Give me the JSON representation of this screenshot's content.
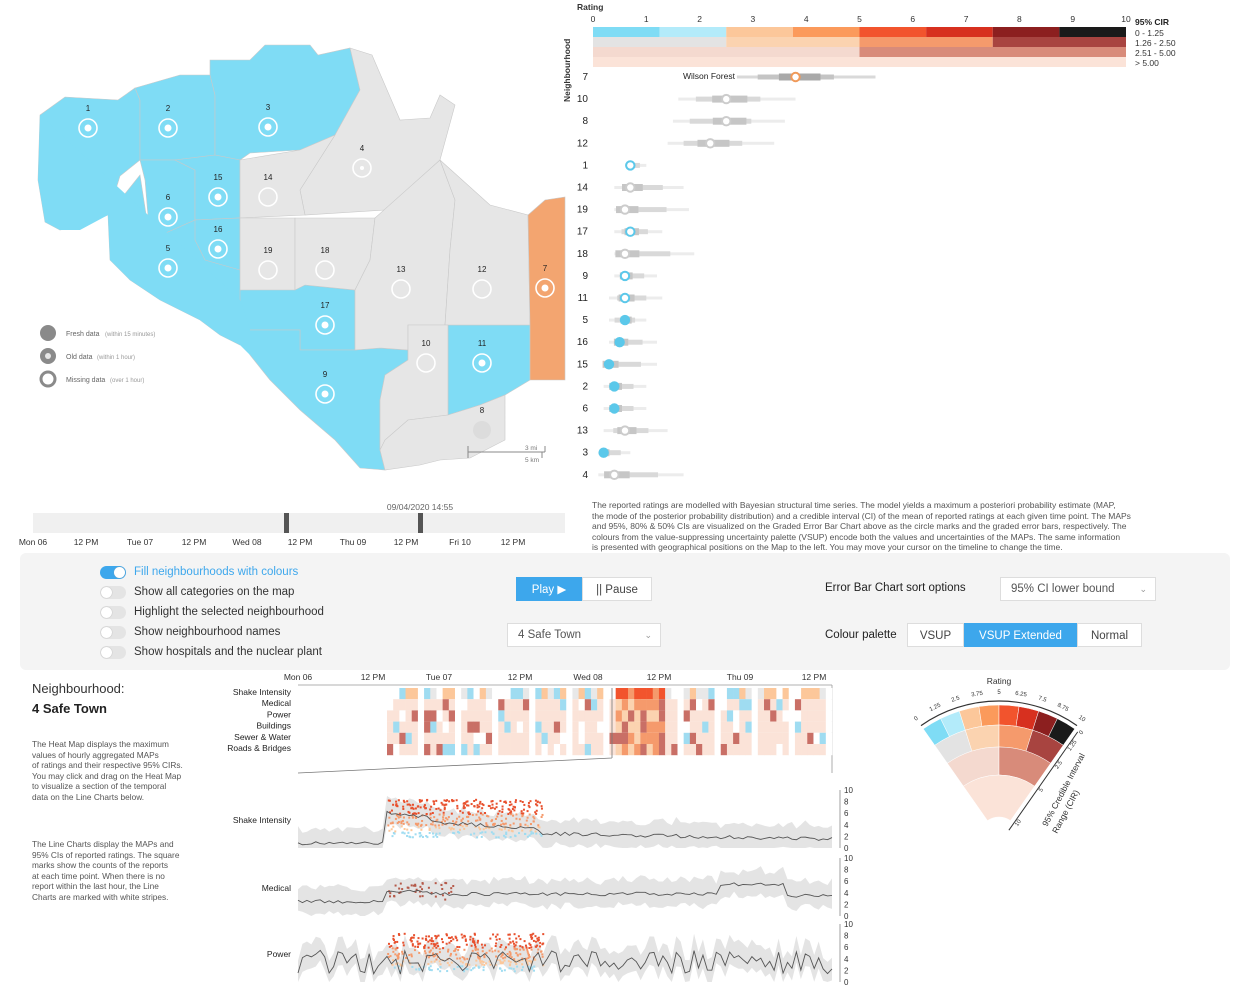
{
  "map": {
    "legend": [
      {
        "label": "Fresh data",
        "sub": "(within 15 minutes)"
      },
      {
        "label": "Old data",
        "sub": "(within 1 hour)"
      },
      {
        "label": "Missing data",
        "sub": "(over 1 hour)"
      }
    ],
    "scale": {
      "mi": "3 mi",
      "km": "5 km"
    },
    "neighbourhood_numbers": [
      "1",
      "2",
      "3",
      "4",
      "5",
      "6",
      "7",
      "8",
      "9",
      "10",
      "11",
      "12",
      "13",
      "14",
      "15",
      "16",
      "17",
      "18",
      "19"
    ]
  },
  "timeline": {
    "current": "09/04/2020 14:55",
    "ticks": [
      "Mon 06",
      "12 PM",
      "Tue 07",
      "12 PM",
      "Wed 08",
      "12 PM",
      "Thu 09",
      "12 PM",
      "Fri 10",
      "12 PM"
    ]
  },
  "error_bar_chart": {
    "axis_title": "Rating",
    "y_title": "Neighbourhood",
    "ticks": [
      "0",
      "1",
      "2",
      "3",
      "4",
      "5",
      "6",
      "7",
      "8",
      "9",
      "10"
    ],
    "legend_title": "95% CIR",
    "legend_items": [
      "0 - 1.25",
      "1.26 - 2.50",
      "2.51 - 5.00",
      "> 5.00"
    ],
    "highlight_label": "Wilson Forest",
    "rows": [
      {
        "id": "7",
        "map": 3.8,
        "lo": 2.7,
        "hi": 5.3,
        "color": "#f09a5a"
      },
      {
        "id": "10",
        "map": 2.5,
        "lo": 1.6,
        "hi": 3.8,
        "color": "#cccccc"
      },
      {
        "id": "8",
        "map": 2.5,
        "lo": 1.5,
        "hi": 3.6,
        "color": "#cccccc"
      },
      {
        "id": "12",
        "map": 2.2,
        "lo": 1.4,
        "hi": 3.4,
        "color": "#cccccc"
      },
      {
        "id": "1",
        "map": 0.7,
        "lo": 0.6,
        "hi": 1.0,
        "color": "#5bc8ea"
      },
      {
        "id": "14",
        "map": 0.7,
        "lo": 0.4,
        "hi": 1.7,
        "color": "#cccccc"
      },
      {
        "id": "19",
        "map": 0.6,
        "lo": 0.4,
        "hi": 1.8,
        "color": "#cccccc"
      },
      {
        "id": "17",
        "map": 0.7,
        "lo": 0.4,
        "hi": 1.3,
        "color": "#5bc8ea"
      },
      {
        "id": "18",
        "map": 0.6,
        "lo": 0.4,
        "hi": 1.9,
        "color": "#cccccc"
      },
      {
        "id": "9",
        "map": 0.6,
        "lo": 0.4,
        "hi": 1.2,
        "color": "#5bc8ea"
      },
      {
        "id": "11",
        "map": 0.6,
        "lo": 0.3,
        "hi": 1.3,
        "color": "#5bc8ea"
      },
      {
        "id": "5",
        "map": 0.6,
        "lo": 0.3,
        "hi": 1.0,
        "color": "#5bc8ea"
      },
      {
        "id": "16",
        "map": 0.5,
        "lo": 0.3,
        "hi": 1.2,
        "color": "#5bc8ea"
      },
      {
        "id": "15",
        "map": 0.3,
        "lo": 0.2,
        "hi": 1.2,
        "color": "#5bc8ea"
      },
      {
        "id": "2",
        "map": 0.4,
        "lo": 0.2,
        "hi": 1.0,
        "color": "#5bc8ea"
      },
      {
        "id": "6",
        "map": 0.4,
        "lo": 0.2,
        "hi": 1.0,
        "color": "#5bc8ea"
      },
      {
        "id": "13",
        "map": 0.6,
        "lo": 0.2,
        "hi": 1.4,
        "color": "#cccccc"
      },
      {
        "id": "3",
        "map": 0.2,
        "lo": 0.1,
        "hi": 0.7,
        "color": "#5bc8ea"
      },
      {
        "id": "4",
        "map": 0.4,
        "lo": 0.1,
        "hi": 1.7,
        "color": "#cccccc"
      }
    ]
  },
  "description": [
    "The reported ratings are modelled with Bayesian structural time series. The model yields a maximum a posteriori probability estimate (MAP,",
    "the mode of the posterior probability distribution) and a credible interval (CI) of the mean of reported ratings at each given time point. The MAPs",
    "and 95%, 80% & 50% CIs are visualized on the Graded Error Bar Chart above as the circle marks and the graded error bars, respectively. The",
    "colours from the value-suppressing uncertainty palette (VSUP) encode both the values and uncertainties of the MAPs. The same information",
    "is presented with geographical positions on the Map to the left. You may move your cursor on the timeline to change the time."
  ],
  "controls": {
    "toggles": [
      {
        "label": "Fill neighbourhoods with colours",
        "on": true
      },
      {
        "label": "Show all categories on the map",
        "on": false
      },
      {
        "label": "Highlight the selected neighbourhood",
        "on": false
      },
      {
        "label": "Show neighbourhood names",
        "on": false
      },
      {
        "label": "Show hospitals and the nuclear plant",
        "on": false
      }
    ],
    "play": "Play ▶",
    "pause": "|| Pause",
    "neighbourhood_select": "4 Safe Town",
    "sort_label": "Error Bar Chart sort options",
    "sort_select": "95% CI lower bound",
    "palette_label": "Colour palette",
    "palette_options": [
      "VSUP",
      "VSUP Extended",
      "Normal"
    ],
    "palette_selected": "VSUP Extended"
  },
  "detail": {
    "heading": "Neighbourhood:",
    "name": "4 Safe Town",
    "heatmap_text": [
      "The Heat Map displays the maximum",
      "values of hourly aggregated MAPs",
      "of ratings and their respective 95% CIRs.",
      "You may click and drag on the Heat Map",
      "to visualize a section of the temporal",
      "data on the Line Charts below."
    ],
    "line_text": [
      "The Line Charts display the MAPs and",
      "95% CIs of reported ratings. The square",
      "marks show the counts of the reports",
      "at each time point. When there is no",
      "report within the last hour, the Line",
      "Charts are marked with white stripes."
    ],
    "heatmap_ticks": [
      "Mon 06",
      "12 PM",
      "Tue 07",
      "12 PM",
      "Wed 08",
      "12 PM",
      "Thu 09",
      "12 PM"
    ],
    "heatmap_rows": [
      "Shake Intensity",
      "Medical",
      "Power",
      "Buildings",
      "Sewer & Water",
      "Roads & Bridges"
    ],
    "line_charts": [
      "Shake Intensity",
      "Medical",
      "Power"
    ],
    "line_ticks": [
      "0",
      "2",
      "4",
      "6",
      "8",
      "10"
    ]
  },
  "vsup_legend": {
    "title": "Rating",
    "rating_ticks": [
      "0",
      "1.25",
      "2.5",
      "3.75",
      "5",
      "6.25",
      "7.5",
      "8.75",
      "10"
    ],
    "cir_ticks": [
      "0",
      "1.25",
      "2.5",
      "5",
      "10"
    ],
    "cir_title_1": "95% Credible Interval",
    "cir_title_2": "Range (CIR)"
  },
  "colors": {
    "blue": "#7fdcf5",
    "grey": "#e6e6e6",
    "orange": "#f3a570",
    "accent": "#3da7ec"
  }
}
